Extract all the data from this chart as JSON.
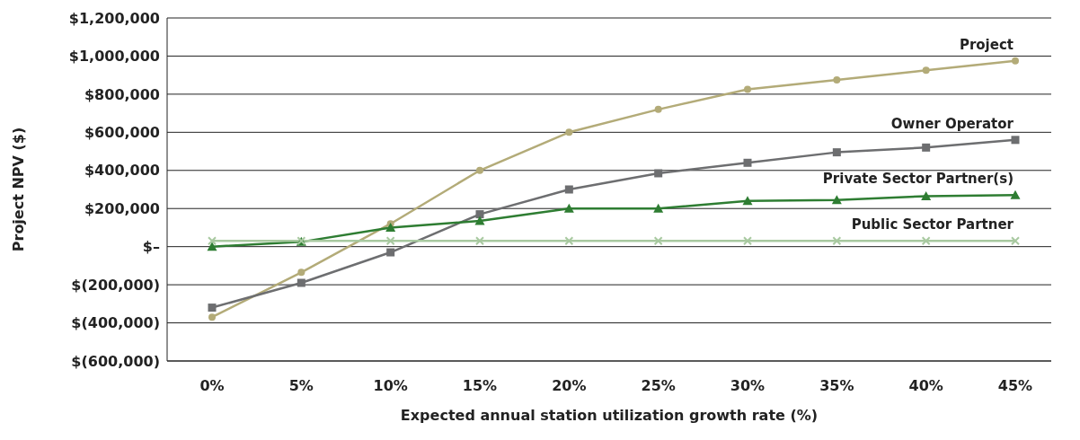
{
  "chart_data": {
    "type": "line",
    "xlabel": "Expected annual station utilization growth rate (%)",
    "ylabel": "Project NPV ($)",
    "categories": [
      "0%",
      "5%",
      "10%",
      "15%",
      "20%",
      "25%",
      "30%",
      "35%",
      "40%",
      "45%"
    ],
    "series": [
      {
        "name": "Project",
        "color": "#b3ab78",
        "marker": "circle",
        "values": [
          -370000,
          -135000,
          120000,
          400000,
          600000,
          720000,
          825000,
          875000,
          925000,
          975000
        ]
      },
      {
        "name": "Owner Operator",
        "color": "#6d6e70",
        "marker": "square",
        "values": [
          -320000,
          -190000,
          -30000,
          170000,
          300000,
          385000,
          440000,
          495000,
          520000,
          560000
        ]
      },
      {
        "name": "Private Sector Partner(s)",
        "color": "#2e7d32",
        "marker": "triangle",
        "values": [
          0,
          25000,
          100000,
          135000,
          200000,
          200000,
          240000,
          245000,
          265000,
          270000
        ]
      },
      {
        "name": "Public Sector Partner",
        "color": "#a8c9a0",
        "marker": "cross",
        "values": [
          30000,
          30000,
          30000,
          30000,
          30000,
          30000,
          30000,
          30000,
          30000,
          30000
        ]
      }
    ],
    "ylim": [
      -600000,
      1200000
    ],
    "yticks": [
      {
        "value": -600000,
        "label": "$(600,000)"
      },
      {
        "value": -400000,
        "label": "$(400,000)"
      },
      {
        "value": -200000,
        "label": "$(200,000)"
      },
      {
        "value": 0,
        "label": "$–"
      },
      {
        "value": 200000,
        "label": "$200,000"
      },
      {
        "value": 400000,
        "label": "$400,000"
      },
      {
        "value": 600000,
        "label": "$600,000"
      },
      {
        "value": 800000,
        "label": "$800,000"
      },
      {
        "value": 1000000,
        "label": "$1,000,000"
      },
      {
        "value": 1200000,
        "label": "$1,200,000"
      }
    ],
    "grid": "y"
  }
}
